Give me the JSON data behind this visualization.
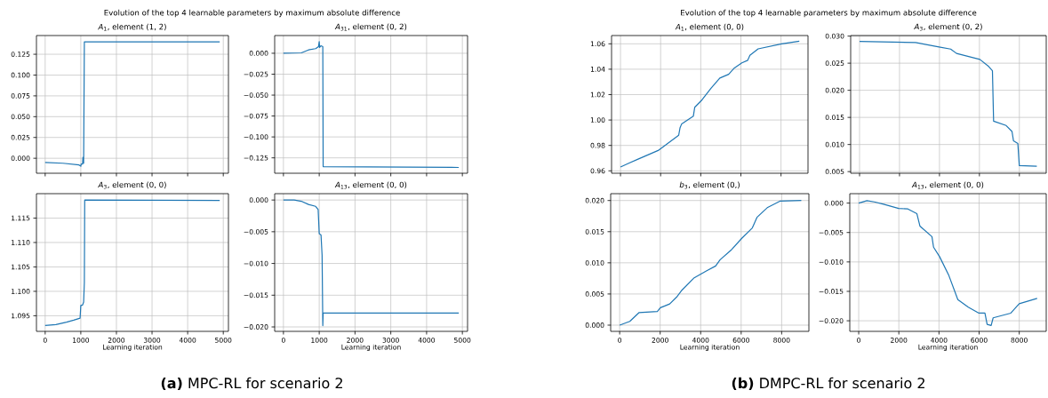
{
  "chart_data": [
    {
      "type": "line",
      "title": "*A*$_{1}$, element (1, 2)",
      "annotations": [
        "Evolution of the top 4 learnable parameters by maximum absolute difference",
        "**(a)** MPC-RL for scenario 2"
      ],
      "color": "#1f77b4",
      "grid": true,
      "tick_labels": "y",
      "x": [
        0,
        500,
        950,
        1000,
        1010,
        1050,
        1060,
        1080,
        1100,
        4900
      ],
      "values": [
        -0.005,
        -0.006,
        -0.008,
        -0.0095,
        -0.007,
        -0.007,
        0.001,
        -0.006,
        0.14,
        0.14
      ],
      "xlim": [
        -245,
        5145
      ],
      "ylim": [
        -0.018,
        0.1475
      ],
      "xticks": [
        0,
        1000,
        2000,
        3000,
        4000,
        5000
      ],
      "yticks": [
        {
          "value": 0,
          "label": "0.000"
        },
        {
          "value": 0.025,
          "label": "0.025"
        },
        {
          "value": 0.05,
          "label": "0.050"
        },
        {
          "value": 0.075,
          "label": "0.075"
        },
        {
          "value": 0.1,
          "label": "0.100"
        },
        {
          "value": 0.125,
          "label": "0.125"
        }
      ]
    },
    {
      "type": "line",
      "title": "*A*$_{31}$, element (0, 2)",
      "color": "#1f77b4",
      "grid": true,
      "tick_labels": "y",
      "x": [
        0,
        500,
        700,
        900,
        980,
        1000,
        1010,
        1050,
        1100,
        1110,
        4900
      ],
      "values": [
        0,
        0.0005,
        0.004,
        0.0055,
        0.008,
        0.014,
        0.007,
        0.009,
        0.008,
        -0.1355,
        -0.1365
      ],
      "xlim": [
        -245,
        5145
      ],
      "ylim": [
        -0.1434,
        0.0212
      ],
      "xticks": [
        0,
        1000,
        2000,
        3000,
        4000,
        5000
      ],
      "yticks": [
        {
          "value": 0,
          "label": "0.000"
        },
        {
          "value": -0.025,
          "label": "−0.025"
        },
        {
          "value": -0.05,
          "label": "−0.050"
        },
        {
          "value": -0.075,
          "label": "−0.075"
        },
        {
          "value": -0.1,
          "label": "−0.100"
        },
        {
          "value": -0.125,
          "label": "−0.125"
        }
      ]
    },
    {
      "type": "line",
      "title": "*A*$_{3}$, element (0, 0)",
      "xlabel": "Learning iteration",
      "color": "#1f77b4",
      "grid": true,
      "x": [
        0,
        300,
        600,
        800,
        980,
        1000,
        1050,
        1080,
        1100,
        1110,
        4900
      ],
      "values": [
        1.093,
        1.0932,
        1.0937,
        1.0941,
        1.0945,
        1.0971,
        1.0972,
        1.0978,
        1.1018,
        1.1187,
        1.1186
      ],
      "xlim": [
        -245,
        5145
      ],
      "ylim": [
        1.0918,
        1.12
      ],
      "xticks": [
        0,
        1000,
        2000,
        3000,
        4000,
        5000
      ],
      "yticks": [
        1.095,
        {
          "value": 1.1,
          "label": "1.100"
        },
        1.105,
        {
          "value": 1.11,
          "label": "1.110"
        },
        1.115
      ]
    },
    {
      "type": "line",
      "title": "*A*$_{13}$, element (0, 0)",
      "xlabel": "Learning iteration",
      "color": "#1f77b4",
      "grid": true,
      "x": [
        0,
        300,
        500,
        700,
        900,
        970,
        1000,
        1050,
        1080,
        1100,
        1110,
        4900
      ],
      "values": [
        0,
        0,
        -0.0002,
        -0.0007,
        -0.001,
        -0.0015,
        -0.0053,
        -0.0055,
        -0.0087,
        -0.0198,
        -0.0178,
        -0.0178
      ],
      "xlim": [
        -245,
        5145
      ],
      "ylim": [
        -0.0207,
        0.001
      ],
      "xticks": [
        0,
        1000,
        2000,
        3000,
        4000,
        5000
      ],
      "yticks": [
        {
          "value": 0,
          "label": "0.000"
        },
        {
          "value": -0.005,
          "label": "−0.005"
        },
        {
          "value": -0.01,
          "label": "−0.010"
        },
        {
          "value": -0.015,
          "label": "−0.015"
        },
        {
          "value": -0.02,
          "label": "−0.020"
        }
      ]
    },
    {
      "type": "line",
      "title": "*A*$_{1}$, element (0, 0)",
      "annotations": [
        "Evolution of the top 4 learnable parameters by maximum absolute difference",
        "**(b)** DMPC-RL for scenario 2"
      ],
      "color": "#1f77b4",
      "grid": true,
      "tick_labels": "y",
      "x": [
        0,
        410,
        850,
        1875,
        2900,
        2970,
        3050,
        3630,
        3700,
        4070,
        4510,
        4950,
        5390,
        5680,
        6050,
        6340,
        6450,
        6860,
        8030,
        8910
      ],
      "values": [
        0.963,
        0.966,
        0.969,
        0.976,
        0.988,
        0.994,
        0.997,
        1.003,
        1.01,
        1.016,
        1.025,
        1.033,
        1.036,
        1.041,
        1.045,
        1.047,
        1.051,
        1.056,
        1.06,
        1.062
      ],
      "xlim": [
        -445,
        9345
      ],
      "ylim": [
        0.9581,
        1.0665
      ],
      "xticks": [
        0,
        2000,
        4000,
        6000,
        8000
      ],
      "yticks": [
        0.96,
        0.98,
        {
          "value": 1,
          "label": "1.00"
        },
        1.02,
        1.04,
        1.06
      ]
    },
    {
      "type": "line",
      "title": "*A*$_{3}$, element (0, 2)",
      "color": "#1f77b4",
      "grid": true,
      "tick_labels": "y",
      "x": [
        0,
        2807,
        3977,
        4561,
        4854,
        6023,
        6462,
        6652,
        6711,
        7339,
        7632,
        7705,
        7924,
        7997,
        8874
      ],
      "values": [
        0.029,
        0.0288,
        0.028,
        0.0276,
        0.0268,
        0.0257,
        0.0244,
        0.0236,
        0.0143,
        0.0135,
        0.0124,
        0.0107,
        0.0102,
        0.0061,
        0.006
      ],
      "xlim": [
        -445,
        9345
      ],
      "ylim": [
        0.0047,
        0.0301
      ],
      "xticks": [
        0,
        2000,
        4000,
        6000,
        8000
      ],
      "yticks": [
        0.005,
        {
          "value": 0.01,
          "label": "0.010"
        },
        0.015,
        {
          "value": 0.02,
          "label": "0.020"
        },
        0.025,
        {
          "value": 0.03,
          "label": "0.030"
        }
      ]
    },
    {
      "type": "line",
      "title": "*b*$_{3}$, element (0,)",
      "xlabel": "Learning iteration",
      "color": "#1f77b4",
      "grid": true,
      "x": [
        0,
        500,
        950,
        1860,
        2010,
        2470,
        2840,
        3070,
        3680,
        4280,
        4740,
        4960,
        5490,
        6020,
        6550,
        6780,
        7310,
        7910,
        8970
      ],
      "values": [
        0,
        0.0006,
        0.002,
        0.0022,
        0.0028,
        0.0034,
        0.0046,
        0.0056,
        0.0076,
        0.0087,
        0.0095,
        0.0105,
        0.012,
        0.0139,
        0.0156,
        0.0173,
        0.0189,
        0.0199,
        0.02
      ],
      "xlim": [
        -445,
        9345
      ],
      "ylim": [
        -0.001,
        0.0211
      ],
      "xticks": [
        0,
        2000,
        4000,
        6000,
        8000
      ],
      "yticks": [
        {
          "value": 0,
          "label": "0.000"
        },
        0.005,
        {
          "value": 0.01,
          "label": "0.010"
        },
        0.015,
        {
          "value": 0.02,
          "label": "0.020"
        }
      ]
    },
    {
      "type": "line",
      "title": "*A*$_{13}$, element (0, 0)",
      "xlabel": "Learning iteration",
      "color": "#1f77b4",
      "grid": true,
      "x": [
        0,
        410,
        780,
        1240,
        1990,
        2450,
        2900,
        3050,
        3650,
        3730,
        4030,
        4480,
        4940,
        5460,
        5990,
        6290,
        6400,
        6600,
        6700,
        7580,
        8000,
        8890
      ],
      "values": [
        0,
        0.0004,
        0.0002,
        -0.0002,
        -0.0009,
        -0.001,
        -0.0018,
        -0.0039,
        -0.0057,
        -0.0075,
        -0.0091,
        -0.0122,
        -0.0164,
        -0.0177,
        -0.0187,
        -0.0187,
        -0.0206,
        -0.0208,
        -0.0195,
        -0.0187,
        -0.0171,
        -0.0162
      ],
      "xlim": [
        -445,
        9345
      ],
      "ylim": [
        -0.0218,
        0.0016
      ],
      "xticks": [
        0,
        2000,
        4000,
        6000,
        8000
      ],
      "yticks": [
        {
          "value": 0,
          "label": "0.000"
        },
        {
          "value": -0.005,
          "label": "−0.005"
        },
        {
          "value": -0.01,
          "label": "−0.010"
        },
        {
          "value": -0.015,
          "label": "−0.015"
        },
        {
          "value": -0.02,
          "label": "−0.020"
        }
      ]
    }
  ]
}
